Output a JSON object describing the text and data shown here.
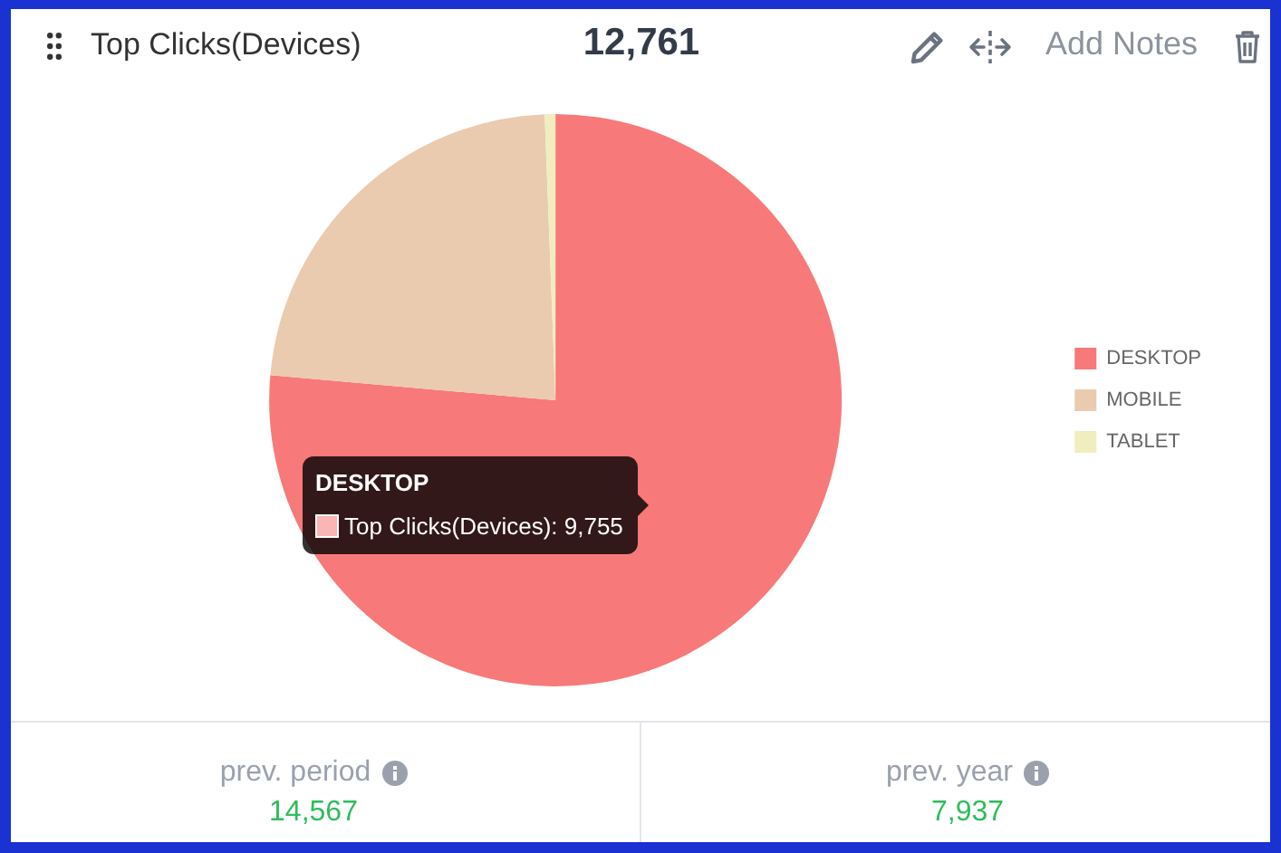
{
  "chart_data": {
    "type": "pie",
    "title": "Top Clicks(Devices)",
    "subtitle": "12,761",
    "categories": [
      "DESKTOP",
      "MOBILE",
      "TABLET"
    ],
    "values": [
      76.4,
      23.0,
      0.6
    ],
    "colors": [
      "#f87979",
      "#eacbb0",
      "#f0edbf"
    ],
    "legend": "right",
    "annotations": [
      "Add Notes",
      {
        "text": "DESKTOP",
        "x": "DESKTOP"
      },
      {
        "text": "Top Clicks(Devices): 9,755",
        "x": "DESKTOP"
      },
      "prev. period",
      "14,567",
      "prev. year",
      "7,937"
    ]
  }
}
